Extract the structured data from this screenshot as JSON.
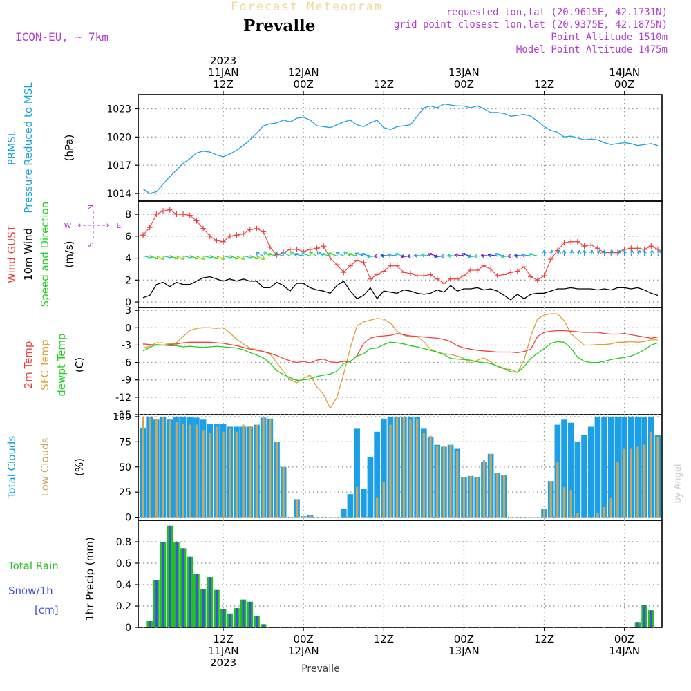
{
  "header": {
    "title": "Forecast Meteogram",
    "location": "Prevalle",
    "model": "ICON-EU, ~ 7km",
    "requested": "requested lon,lat (20.9615E, 42.1731N)",
    "grid_point": "grid point closest lon,lat (20.9375E, 42.1875N)",
    "point_altitude": "Point Altitude 1510m",
    "model_altitude": "Model Point Altitude 1475m",
    "footer_location": "Prevalle",
    "credit": "by Angel"
  },
  "colors": {
    "pressure": "#1ba0e0",
    "gust": "#ef4040",
    "wind": "#000000",
    "t2m": "#ef4040",
    "sfc": "#e0a030",
    "dew": "#20d020",
    "total_clouds": "#1ba0e8",
    "low_clouds": "#c8a860",
    "rain": "#20c020",
    "snow": "#4050e0",
    "label_purple": "#b040d0"
  },
  "time_axis": {
    "top_ticks": [
      {
        "h": 12,
        "lines": [
          "2023",
          "11JAN",
          "12Z"
        ]
      },
      {
        "h": 24,
        "lines": [
          "12JAN",
          "00Z"
        ]
      },
      {
        "h": 36,
        "lines": [
          "12Z"
        ]
      },
      {
        "h": 48,
        "lines": [
          "13JAN",
          "00Z"
        ]
      },
      {
        "h": 60,
        "lines": [
          "12Z"
        ]
      },
      {
        "h": 72,
        "lines": [
          "14JAN",
          "00Z"
        ]
      }
    ],
    "bottom_ticks": [
      {
        "h": 12,
        "lines": [
          "12Z",
          "11JAN",
          "2023"
        ]
      },
      {
        "h": 24,
        "lines": [
          "00Z",
          "12JAN"
        ]
      },
      {
        "h": 36,
        "lines": [
          "12Z"
        ]
      },
      {
        "h": 48,
        "lines": [
          "00Z",
          "13JAN"
        ]
      },
      {
        "h": 60,
        "lines": [
          "12Z"
        ]
      },
      {
        "h": 72,
        "lines": [
          "00Z",
          "14JAN"
        ]
      }
    ],
    "start_h": 0,
    "end_h": 77
  },
  "chart_data": [
    {
      "type": "line",
      "ylabel_lines": [
        "PRMSL",
        "Pressure Reduced to MSL"
      ],
      "unit": "(hPa)",
      "yticks": [
        1014,
        1017,
        1020,
        1023
      ],
      "ylim": [
        1013.2,
        1024.5
      ],
      "series": [
        {
          "x": [
            0,
            1,
            2,
            3,
            4,
            5,
            6,
            7,
            8,
            9,
            10,
            11,
            12,
            13,
            14,
            15,
            16,
            17,
            18,
            19,
            20,
            21,
            22,
            23,
            24,
            25,
            26,
            27,
            28,
            29,
            30,
            31,
            32,
            33,
            34,
            35,
            36,
            37,
            38,
            39,
            40,
            41,
            42,
            43,
            44,
            45,
            46,
            47,
            48,
            49,
            50,
            51,
            52,
            53,
            54,
            55,
            56,
            57,
            58,
            59,
            60,
            61,
            62,
            63,
            64,
            65,
            66,
            67,
            68,
            69,
            70,
            71,
            72,
            73,
            74,
            75,
            76,
            77
          ],
          "values": [
            1014.5,
            1014.0,
            1014.2,
            1015.0,
            1015.8,
            1016.5,
            1017.2,
            1017.7,
            1018.3,
            1018.5,
            1018.4,
            1018.1,
            1017.9,
            1018.2,
            1018.6,
            1019.1,
            1019.7,
            1020.4,
            1021.2,
            1021.4,
            1021.5,
            1021.8,
            1021.6,
            1022.0,
            1022.1,
            1021.8,
            1021.2,
            1021.1,
            1021.0,
            1021.3,
            1021.6,
            1021.8,
            1021.3,
            1021.1,
            1021.5,
            1021.8,
            1021.0,
            1020.8,
            1021.1,
            1021.2,
            1021.3,
            1022.2,
            1023.1,
            1023.3,
            1023.1,
            1023.5,
            1023.4,
            1023.3,
            1023.3,
            1023.1,
            1023.3,
            1023.0,
            1022.6,
            1022.6,
            1022.5,
            1022.2,
            1022.3,
            1022.4,
            1022.2,
            1021.7,
            1021.1,
            1020.7,
            1020.5,
            1020.0,
            1020.1,
            1019.9,
            1019.7,
            1019.8,
            1019.7,
            1019.4,
            1019.2,
            1019.3,
            1019.4,
            1019.3,
            1019.1,
            1019.2,
            1019.3,
            1019.1
          ]
        }
      ]
    },
    {
      "type": "line",
      "ylabel_lines": [
        "Wind GUST",
        "10m Wind",
        "Speed and Direction"
      ],
      "unit": "(m/s)",
      "compass": {
        "n": "N",
        "s": "S",
        "w": "W",
        "e": "E"
      },
      "yticks": [
        0,
        2,
        4,
        6,
        8
      ],
      "ylim": [
        -0.5,
        9.2
      ],
      "gust": [
        6.1,
        6.8,
        8.0,
        8.3,
        8.4,
        8.0,
        8.0,
        7.9,
        7.4,
        6.7,
        6.0,
        5.6,
        5.5,
        6.0,
        6.1,
        6.2,
        6.6,
        6.7,
        6.4,
        5.0,
        4.3,
        4.5,
        4.8,
        4.8,
        4.6,
        4.8,
        4.9,
        5.1,
        4.0,
        3.4,
        2.7,
        3.3,
        3.8,
        3.6,
        2.1,
        2.5,
        2.8,
        3.3,
        3.3,
        2.7,
        2.6,
        2.4,
        2.4,
        2.5,
        2.1,
        1.7,
        2.1,
        2.1,
        2.4,
        2.9,
        2.9,
        3.3,
        3.0,
        2.4,
        2.5,
        2.7,
        2.8,
        3.2,
        2.3,
        2.0,
        2.4,
        3.9,
        4.7,
        5.4,
        5.5,
        5.5,
        5.1,
        5.2,
        4.9,
        4.5,
        4.5,
        4.5,
        4.8,
        4.9,
        4.9,
        4.8,
        5.1,
        4.8
      ],
      "wind": [
        0.4,
        0.6,
        1.6,
        1.8,
        1.4,
        1.8,
        1.6,
        1.6,
        1.9,
        2.2,
        2.3,
        2.1,
        1.9,
        2.1,
        1.9,
        2.1,
        1.9,
        1.9,
        1.3,
        1.3,
        1.8,
        1.5,
        1.0,
        1.7,
        1.7,
        1.3,
        1.1,
        1.0,
        0.8,
        1.5,
        1.9,
        1.0,
        0.3,
        0.6,
        1.3,
        0.3,
        1.0,
        0.9,
        0.8,
        1.1,
        1.0,
        0.8,
        0.7,
        0.8,
        1.1,
        0.9,
        1.5,
        1.0,
        1.2,
        1.2,
        1.3,
        1.1,
        1.2,
        1.0,
        0.6,
        0.2,
        0.7,
        0.3,
        0.7,
        0.8,
        0.8,
        1.0,
        1.2,
        1.2,
        1.3,
        1.2,
        1.2,
        1.2,
        1.1,
        1.2,
        1.1,
        1.3,
        1.3,
        1.2,
        1.3,
        1.1,
        0.8,
        0.6
      ]
    },
    {
      "type": "line",
      "ylabel_lines": [
        "2m Temp",
        "SFC Temp",
        "dewpt Temp"
      ],
      "unit": "(C)",
      "yticks": [
        3,
        0,
        -3,
        -6,
        -9,
        -12,
        -15
      ],
      "ylim": [
        -15,
        3.5
      ],
      "t2m": [
        -2.8,
        -2.9,
        -3.0,
        -3.0,
        -2.9,
        -2.8,
        -2.6,
        -2.5,
        -2.5,
        -2.5,
        -2.5,
        -2.6,
        -2.7,
        -2.9,
        -3.1,
        -3.4,
        -3.7,
        -3.9,
        -4.1,
        -4.4,
        -4.8,
        -5.3,
        -5.7,
        -6.0,
        -5.8,
        -6.1,
        -5.6,
        -5.4,
        -5.9,
        -6.0,
        -5.8,
        -5.9,
        -4.8,
        -2.7,
        -1.8,
        -1.5,
        -1.4,
        -1.3,
        -1.0,
        -1.2,
        -1.4,
        -1.5,
        -1.6,
        -1.7,
        -1.8,
        -2.0,
        -2.4,
        -3.1,
        -3.5,
        -3.7,
        -3.9,
        -4.0,
        -4.1,
        -4.2,
        -4.2,
        -4.2,
        -4.3,
        -4.1,
        -3.7,
        -1.5,
        -0.8,
        -0.6,
        -0.5,
        -0.5,
        -0.6,
        -0.7,
        -0.8,
        -0.8,
        -0.8,
        -1.0,
        -1.1,
        -1.1,
        -1.0,
        -1.2,
        -1.4,
        -1.6,
        -1.8,
        -1.6
      ],
      "sfc": [
        -3.5,
        -3.2,
        -2.6,
        -2.6,
        -2.8,
        -2.6,
        -1.5,
        -0.5,
        -0.1,
        0.0,
        0.0,
        -0.1,
        0.0,
        -0.9,
        -2.0,
        -2.8,
        -3.5,
        -3.8,
        -4.1,
        -4.5,
        -6.0,
        -7.6,
        -9.0,
        -9.5,
        -8.7,
        -8.2,
        -10.2,
        -11.5,
        -13.9,
        -12.0,
        -8.0,
        -3.5,
        0.3,
        1.0,
        1.3,
        1.6,
        1.5,
        0.8,
        -0.6,
        -1.3,
        -1.6,
        -1.5,
        -2.4,
        -3.7,
        -4.2,
        -4.5,
        -4.6,
        -4.9,
        -5.3,
        -6.1,
        -5.6,
        -5.2,
        -5.9,
        -6.7,
        -7.1,
        -7.2,
        -7.7,
        -5.6,
        -1.4,
        1.5,
        2.2,
        2.4,
        2.4,
        1.2,
        -1.0,
        -2.0,
        -3.0,
        -3.0,
        -2.9,
        -2.9,
        -2.8,
        -2.5,
        -2.5,
        -2.4,
        -2.5,
        -2.4,
        -2.1,
        -2.1
      ],
      "dew": [
        -4.0,
        -3.4,
        -2.9,
        -3.0,
        -3.1,
        -3.1,
        -3.3,
        -3.2,
        -3.3,
        -3.4,
        -3.3,
        -3.2,
        -3.3,
        -3.4,
        -3.5,
        -3.8,
        -4.3,
        -4.7,
        -5.2,
        -6.1,
        -7.4,
        -8.1,
        -8.6,
        -9.1,
        -9.0,
        -8.8,
        -8.4,
        -8.2,
        -8.0,
        -7.5,
        -6.2,
        -5.8,
        -4.9,
        -4.5,
        -3.6,
        -3.5,
        -2.9,
        -2.5,
        -2.6,
        -2.8,
        -3.1,
        -3.3,
        -3.6,
        -3.9,
        -4.2,
        -4.6,
        -5.3,
        -5.4,
        -5.5,
        -5.6,
        -5.9,
        -6.0,
        -6.2,
        -6.6,
        -7.0,
        -7.6,
        -7.7,
        -6.7,
        -5.3,
        -4.4,
        -3.6,
        -2.7,
        -2.4,
        -2.5,
        -3.5,
        -5.1,
        -5.8,
        -6.0,
        -6.0,
        -5.8,
        -5.5,
        -5.3,
        -5.1,
        -4.9,
        -4.4,
        -3.8,
        -3.0,
        -2.6
      ]
    },
    {
      "type": "bar",
      "ylabel_lines": [
        "Total Clouds",
        "Low Clouds"
      ],
      "unit": "(%)",
      "yticks": [
        0,
        25,
        50,
        75,
        100
      ],
      "ylim": [
        -3,
        102
      ],
      "total": [
        89,
        100,
        97,
        100,
        97,
        100,
        100,
        100,
        99,
        97,
        93,
        93,
        93,
        90,
        90,
        90,
        90,
        92,
        99,
        98,
        75,
        50,
        0,
        18,
        1,
        2,
        0,
        0,
        0,
        0,
        8,
        23,
        88,
        28,
        60,
        85,
        98,
        100,
        100,
        100,
        100,
        100,
        88,
        80,
        72,
        70,
        72,
        68,
        40,
        41,
        40,
        55,
        63,
        44,
        42,
        0,
        0,
        0,
        0,
        0,
        8,
        36,
        92,
        97,
        94,
        75,
        82,
        90,
        100,
        100,
        100,
        100,
        100,
        100,
        100,
        100,
        100,
        82
      ],
      "low": [
        100,
        99,
        98,
        99,
        96,
        95,
        93,
        92,
        92,
        86,
        84,
        90,
        85,
        88,
        85,
        92,
        91,
        92,
        99,
        97,
        75,
        50,
        0,
        18,
        1,
        2,
        0,
        0,
        0,
        0,
        0,
        0,
        30,
        0,
        0,
        20,
        35,
        92,
        100,
        100,
        97,
        98,
        84,
        81,
        71,
        71,
        72,
        66,
        40,
        41,
        40,
        57,
        63,
        44,
        42,
        0,
        0,
        0,
        0,
        0,
        8,
        36,
        55,
        30,
        27,
        4,
        0,
        0,
        4,
        10,
        19,
        55,
        68,
        68,
        70,
        72,
        85,
        80
      ]
    },
    {
      "type": "bar",
      "ylabel_lines": [
        "1hr Precip (mm)"
      ],
      "legend": {
        "rain": "Total Rain",
        "snow": "Snow/1h",
        "snow_unit": "[cm]"
      },
      "yticks": [
        0,
        0.2,
        0.4,
        0.6,
        0.8
      ],
      "yticklabels": [
        "0",
        "0.2",
        "0.4",
        "0.6",
        "0.8"
      ],
      "ylim": [
        0,
        1.0
      ],
      "rain": [
        0.0,
        0.06,
        0.44,
        0.8,
        0.95,
        0.8,
        0.74,
        0.66,
        0.5,
        0.36,
        0.47,
        0.35,
        0.17,
        0.13,
        0.18,
        0.26,
        0.24,
        0.11,
        0.03,
        0,
        0,
        0,
        0,
        0,
        0,
        0,
        0,
        0,
        0,
        0,
        0,
        0,
        0,
        0,
        0,
        0,
        0,
        0,
        0,
        0,
        0,
        0,
        0,
        0,
        0,
        0,
        0,
        0,
        0,
        0,
        0,
        0,
        0,
        0,
        0,
        0,
        0,
        0,
        0,
        0,
        0,
        0,
        0,
        0,
        0,
        0,
        0,
        0,
        0,
        0,
        0,
        0,
        0,
        0,
        0.05,
        0.21,
        0.16,
        0
      ]
    }
  ]
}
